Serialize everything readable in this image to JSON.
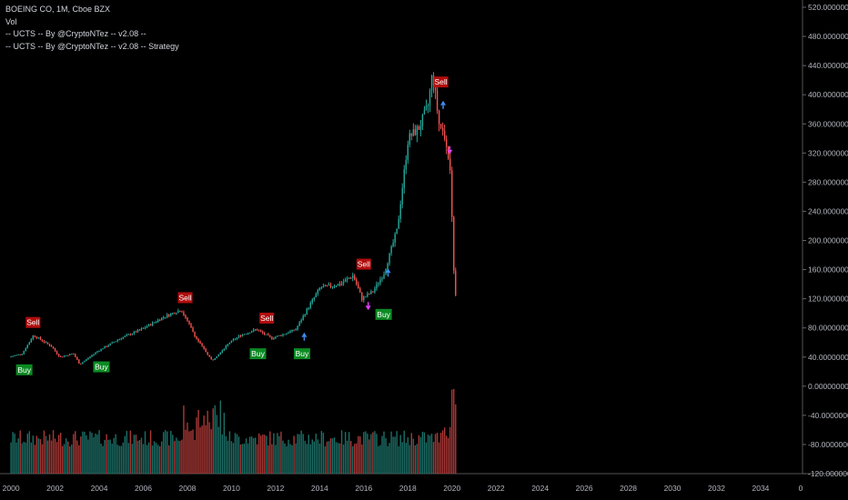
{
  "legend": {
    "symbol": "BOEING CO, 1M, Cboe BZX",
    "volume": "Vol",
    "indicator": "-- UCTS -- By @CryptoNTez -- v2.08 --",
    "strategy": "-- UCTS -- By @CryptoNTez -- v2.08 -- Strategy"
  },
  "colors": {
    "background": "#000000",
    "up": "#26a69a",
    "down": "#ef5350",
    "up_volume": "#1c6e66",
    "down_volume": "#a83836",
    "buy": "#0c8a23",
    "sell": "#b10d0d",
    "strategy_arrow_up": "#3d8ef0",
    "strategy_arrow_down": "#e040fb",
    "axis_text": "#b2b5be"
  },
  "chart_data": {
    "type": "candlestick",
    "title": "BOEING CO, 1M, Cboe BZX",
    "xlim": [
      1999.5,
      2035.9
    ],
    "ylim": [
      -120,
      520
    ],
    "x_ticks": [
      "2000",
      "2002",
      "2004",
      "2006",
      "2008",
      "2010",
      "2012",
      "2014",
      "2016",
      "2018",
      "2020",
      "2022",
      "2024",
      "2026",
      "2028",
      "2030",
      "2032",
      "2034",
      "0"
    ],
    "y_ticks": [
      "520.00000000",
      "480.00000000",
      "440.00000000",
      "400.00000000",
      "360.00000000",
      "320.00000000",
      "280.00000000",
      "240.00000000",
      "200.00000000",
      "160.00000000",
      "120.00000000",
      "80.00000000",
      "40.00000000",
      "0.00000000",
      "-40.00000000",
      "-80.00000000",
      "-120.00000000"
    ],
    "price_anchors": [
      [
        2000.0,
        40
      ],
      [
        2000.6,
        45
      ],
      [
        2001.1,
        70
      ],
      [
        2001.9,
        55
      ],
      [
        2002.3,
        40
      ],
      [
        2002.9,
        45
      ],
      [
        2003.2,
        30
      ],
      [
        2004.0,
        48
      ],
      [
        2005.0,
        65
      ],
      [
        2006.0,
        78
      ],
      [
        2007.0,
        95
      ],
      [
        2007.8,
        105
      ],
      [
        2008.5,
        65
      ],
      [
        2009.2,
        35
      ],
      [
        2010.0,
        60
      ],
      [
        2010.5,
        70
      ],
      [
        2011.2,
        78
      ],
      [
        2011.9,
        66
      ],
      [
        2012.5,
        72
      ],
      [
        2013.0,
        78
      ],
      [
        2013.6,
        110
      ],
      [
        2014.1,
        135
      ],
      [
        2015.0,
        140
      ],
      [
        2015.6,
        152
      ],
      [
        2016.0,
        120
      ],
      [
        2016.5,
        130
      ],
      [
        2017.0,
        155
      ],
      [
        2017.6,
        215
      ],
      [
        2018.1,
        340
      ],
      [
        2018.6,
        355
      ],
      [
        2019.0,
        385
      ],
      [
        2019.2,
        430
      ],
      [
        2019.5,
        360
      ],
      [
        2019.8,
        340
      ],
      [
        2020.0,
        300
      ],
      [
        2020.2,
        125
      ]
    ],
    "volume_note": "Volume histogram drawn in bottom pane; bars roughly 30-45 in scaled height with spikes near 2008-2009 and 2020.",
    "signals": [
      {
        "type": "buy",
        "x": 2000.6,
        "price": 40,
        "label": "Buy"
      },
      {
        "type": "sell",
        "x": 2001.0,
        "price": 70,
        "label": "Sell"
      },
      {
        "type": "buy",
        "x": 2004.1,
        "price": 44,
        "label": "Buy"
      },
      {
        "type": "sell",
        "x": 2007.9,
        "price": 104,
        "label": "Sell"
      },
      {
        "type": "buy",
        "x": 2011.2,
        "price": 62,
        "label": "Buy"
      },
      {
        "type": "sell",
        "x": 2011.6,
        "price": 76,
        "label": "Sell"
      },
      {
        "type": "buy",
        "x": 2013.2,
        "price": 62,
        "label": "Buy"
      },
      {
        "type": "sell",
        "x": 2016.0,
        "price": 150,
        "label": "Sell"
      },
      {
        "type": "buy",
        "x": 2016.9,
        "price": 116,
        "label": "Buy"
      },
      {
        "type": "sell",
        "x": 2019.5,
        "price": 400,
        "label": "Sell"
      }
    ],
    "strategy_markers": [
      {
        "dir": "up",
        "x": 2013.3,
        "price": 70
      },
      {
        "dir": "down",
        "x": 2016.2,
        "price": 108
      },
      {
        "dir": "up",
        "x": 2017.1,
        "price": 158
      },
      {
        "dir": "down",
        "x": 2019.9,
        "price": 322
      },
      {
        "dir": "up",
        "x": 2019.6,
        "price": 388
      }
    ]
  }
}
